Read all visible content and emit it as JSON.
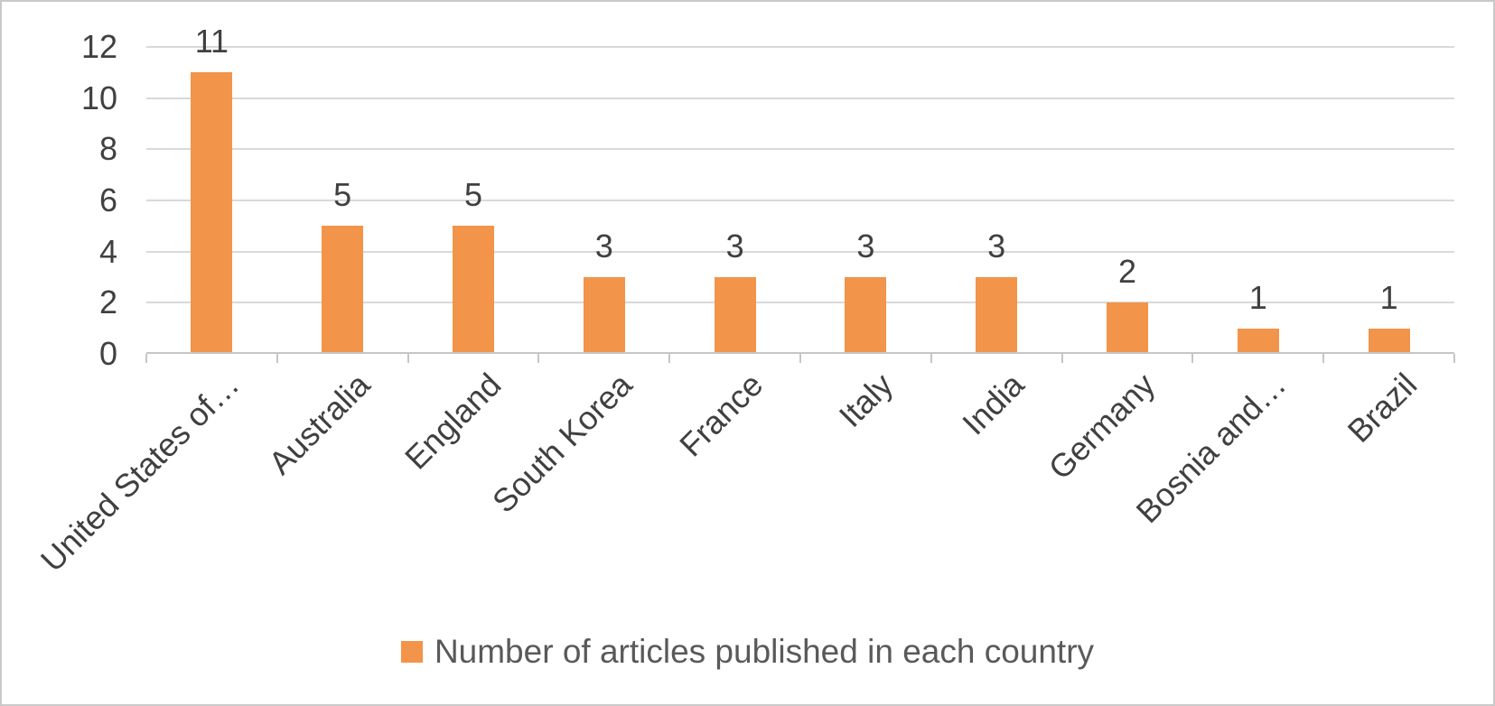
{
  "chart_data": {
    "type": "bar",
    "categories": [
      "United States of…",
      "Australia",
      "England",
      "South Korea",
      "France",
      "Italy",
      "India",
      "Germany",
      "Bosnia and…",
      "Brazil"
    ],
    "values": [
      11,
      5,
      5,
      3,
      3,
      3,
      3,
      2,
      1,
      1
    ],
    "title": "",
    "xlabel": "",
    "ylabel": "",
    "ylim": [
      0,
      12
    ],
    "yticks": [
      0,
      2,
      4,
      6,
      8,
      10,
      12
    ],
    "grid": "horizontal-only",
    "data_labels_position": "outside-end",
    "legend_label": "Number of articles published in each country",
    "legend_position": "bottom"
  },
  "colors": {
    "bar": "#F2944A",
    "gridline": "#D9D9D9",
    "axis_line": "#C6C6C6",
    "tick": "#C6C6C6",
    "label_text": "#404040",
    "legend_text": "#595959",
    "border": "#C9C9C9",
    "background": "#FFFFFF"
  }
}
